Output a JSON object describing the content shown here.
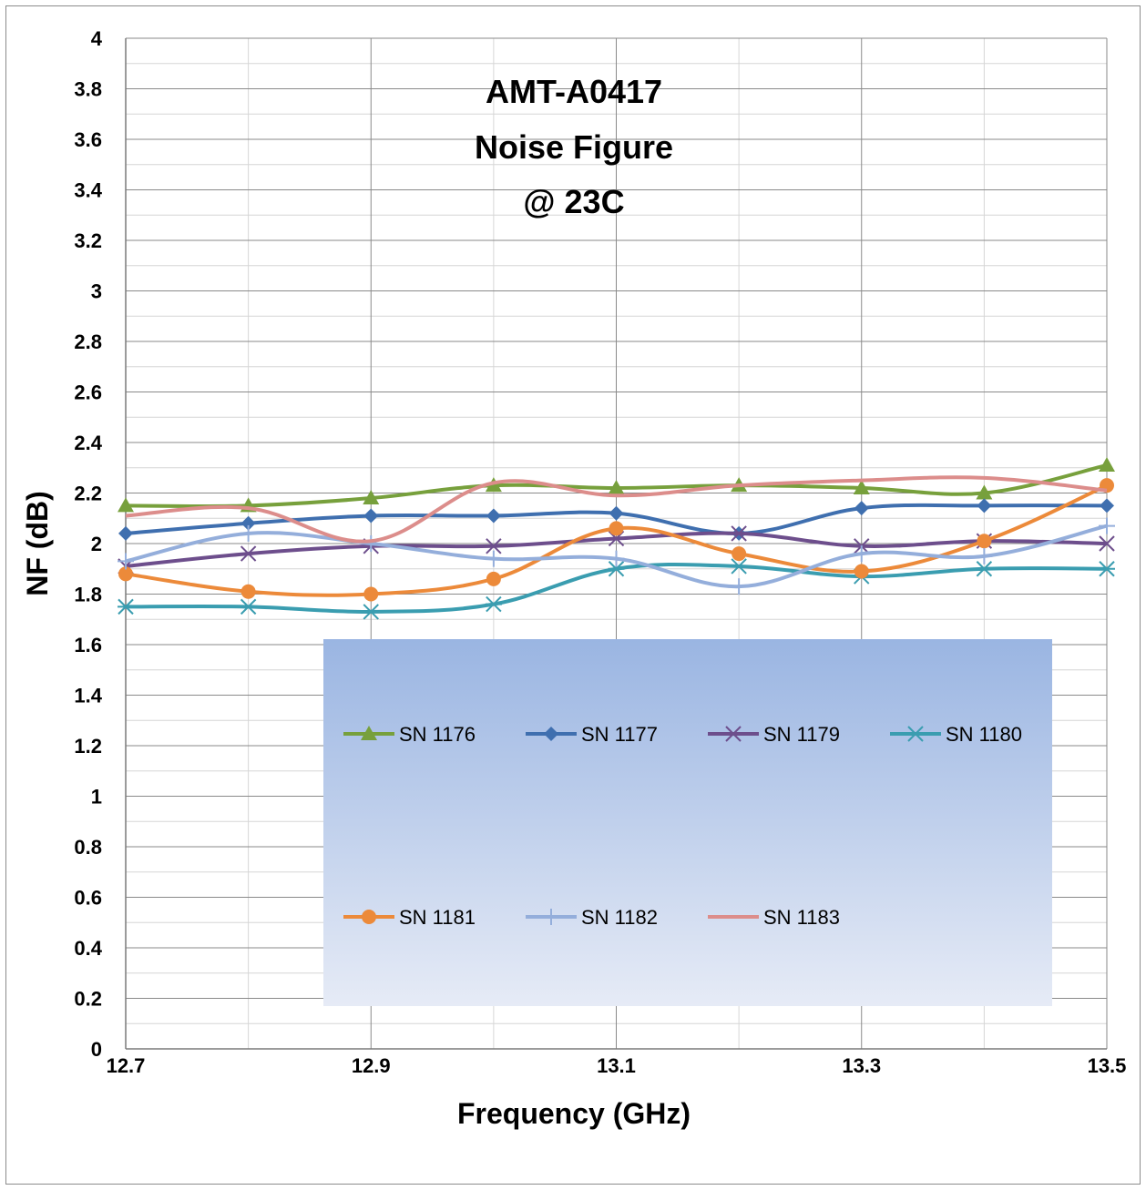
{
  "chart_data": {
    "type": "line",
    "title_lines": [
      "AMT-A0417",
      "Noise Figure",
      "@ 23C"
    ],
    "xlabel": "Frequency (GHz)",
    "ylabel": "NF  (dB)",
    "xlim": [
      12.7,
      13.5
    ],
    "ylim": [
      0,
      4
    ],
    "x_ticks": [
      "12.7",
      "12.9",
      "13.1",
      "13.3",
      "13.5"
    ],
    "y_ticks": [
      "0",
      "0.2",
      "0.4",
      "0.6",
      "0.8",
      "1",
      "1.2",
      "1.4",
      "1.6",
      "1.8",
      "2",
      "2.2",
      "2.4",
      "2.6",
      "2.8",
      "3",
      "3.2",
      "3.4",
      "3.6",
      "3.8",
      "4"
    ],
    "grid": true,
    "legend_position": "inside-bottom-center",
    "x": [
      12.7,
      12.8,
      12.9,
      13.0,
      13.1,
      13.2,
      13.3,
      13.4,
      13.5
    ],
    "series": [
      {
        "name": "SN 1176",
        "color": "#77a03c",
        "marker": "triangle",
        "values": [
          2.15,
          2.15,
          2.18,
          2.23,
          2.22,
          2.23,
          2.22,
          2.2,
          2.31
        ]
      },
      {
        "name": "SN 1177",
        "color": "#3f6faf",
        "marker": "diamond",
        "values": [
          2.04,
          2.08,
          2.11,
          2.11,
          2.12,
          2.04,
          2.14,
          2.15,
          2.15
        ]
      },
      {
        "name": "SN 1179",
        "color": "#6d4e8c",
        "marker": "x",
        "values": [
          1.91,
          1.96,
          1.99,
          1.99,
          2.02,
          2.04,
          1.99,
          2.01,
          2.0
        ]
      },
      {
        "name": "SN 1180",
        "color": "#3a9db0",
        "marker": "asterisk",
        "values": [
          1.75,
          1.75,
          1.73,
          1.76,
          1.9,
          1.91,
          1.87,
          1.9,
          1.9
        ]
      },
      {
        "name": "SN 1181",
        "color": "#ec8a3a",
        "marker": "circle",
        "values": [
          1.88,
          1.81,
          1.8,
          1.86,
          2.06,
          1.96,
          1.89,
          2.01,
          2.23
        ]
      },
      {
        "name": "SN 1182",
        "color": "#94aedb",
        "marker": "plus",
        "values": [
          1.93,
          2.04,
          2.0,
          1.94,
          1.94,
          1.83,
          1.96,
          1.95,
          2.07
        ]
      },
      {
        "name": "SN 1183",
        "color": "#dc8d8b",
        "marker": "none",
        "values": [
          2.11,
          2.14,
          2.01,
          2.24,
          2.19,
          2.23,
          2.25,
          2.26,
          2.21
        ]
      }
    ],
    "legend_background": [
      "#9ab5e2",
      "#e6ebf6"
    ]
  }
}
